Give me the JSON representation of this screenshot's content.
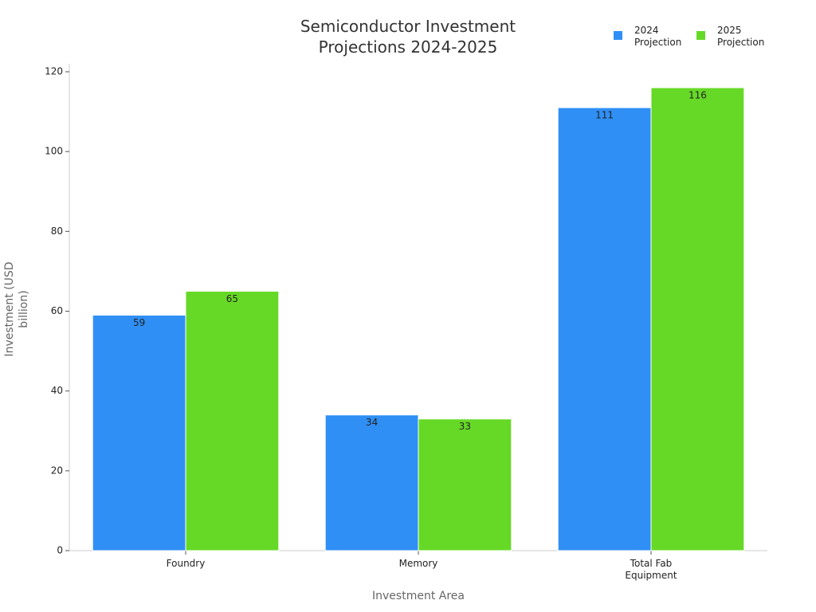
{
  "chart_data": {
    "type": "bar",
    "title": "Semiconductor Investment Projections 2024-2025",
    "xlabel": "Investment Area",
    "ylabel": "Investment (USD billion)",
    "categories": [
      "Foundry",
      "Memory",
      "Total Fab Equipment"
    ],
    "series": [
      {
        "name": "2024 Projection",
        "color": "#2f8ff5",
        "values": [
          59,
          34,
          111
        ]
      },
      {
        "name": "2025 Projection",
        "color": "#66d926",
        "values": [
          65,
          33,
          116
        ]
      }
    ],
    "ylim": [
      0,
      122
    ],
    "yticks": [
      0,
      20,
      40,
      60,
      80,
      100,
      120
    ],
    "legend": "upper right"
  }
}
